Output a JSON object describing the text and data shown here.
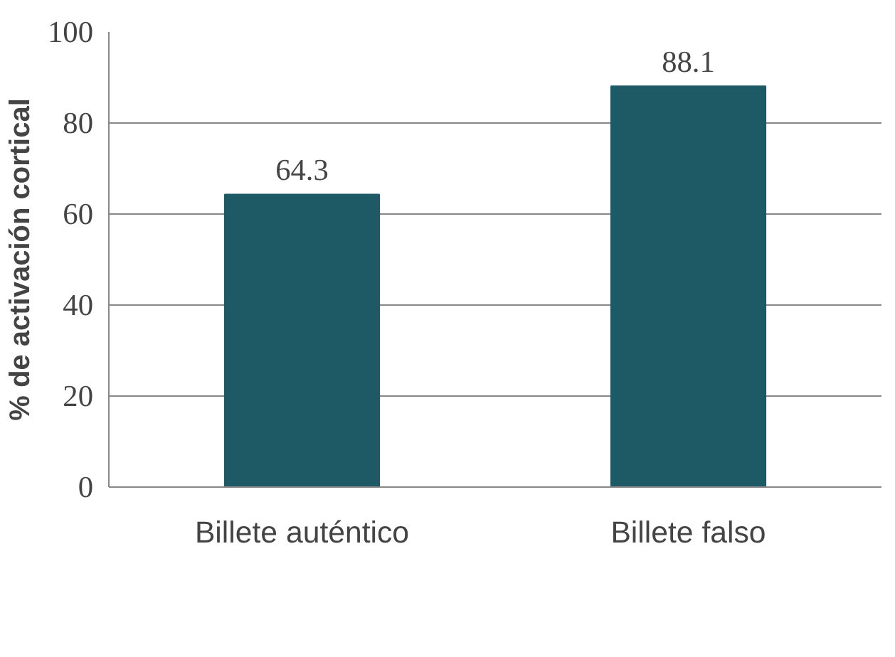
{
  "chart_data": {
    "type": "bar",
    "ylabel": "% de activación cortical",
    "categories": [
      "Billete auténtico",
      "Billete falso"
    ],
    "values": [
      64.3,
      88.1
    ],
    "color": "#1d5a66",
    "ylim": [
      0,
      100
    ],
    "yticks": [
      0,
      20,
      40,
      60,
      80,
      100
    ],
    "grid": "y",
    "data_labels": true
  }
}
